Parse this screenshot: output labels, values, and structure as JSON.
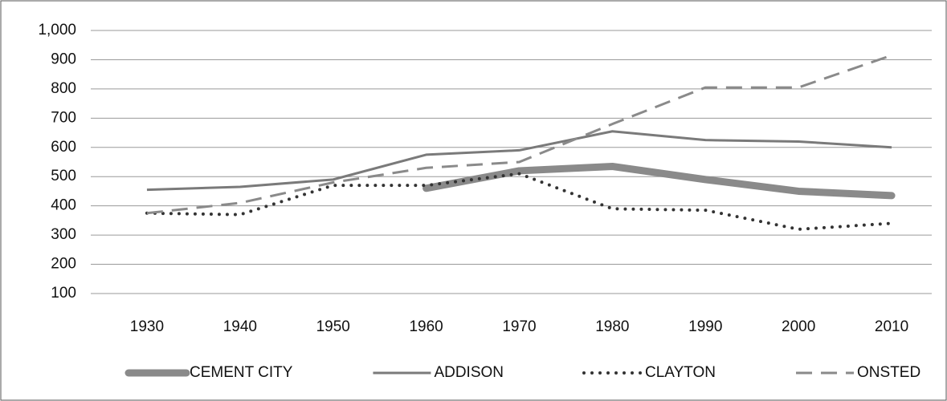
{
  "chart_data": {
    "type": "line",
    "categories": [
      "1930",
      "1940",
      "1950",
      "1960",
      "1970",
      "1980",
      "1990",
      "2000",
      "2010"
    ],
    "series": [
      {
        "name": "CEMENT CITY",
        "color": "#8a8a8a",
        "style": "thick",
        "values": [
          null,
          null,
          null,
          460,
          520,
          535,
          490,
          450,
          435
        ]
      },
      {
        "name": "ADDISON",
        "color": "#7a7a7a",
        "style": "solid",
        "values": [
          455,
          465,
          490,
          575,
          590,
          655,
          625,
          620,
          600
        ]
      },
      {
        "name": "CLAYTON",
        "color": "#333333",
        "style": "dotted",
        "values": [
          375,
          370,
          470,
          470,
          510,
          390,
          385,
          320,
          340
        ]
      },
      {
        "name": "ONSTED",
        "color": "#8a8a8a",
        "style": "dashed",
        "values": [
          375,
          410,
          480,
          530,
          550,
          680,
          805,
          805,
          915
        ]
      }
    ],
    "ylim": [
      100,
      1000
    ],
    "yticks": [
      100,
      200,
      300,
      400,
      500,
      600,
      700,
      800,
      900,
      {
        "value": 1000,
        "label": "1,000"
      }
    ],
    "grid": true,
    "legend": "bottom"
  }
}
